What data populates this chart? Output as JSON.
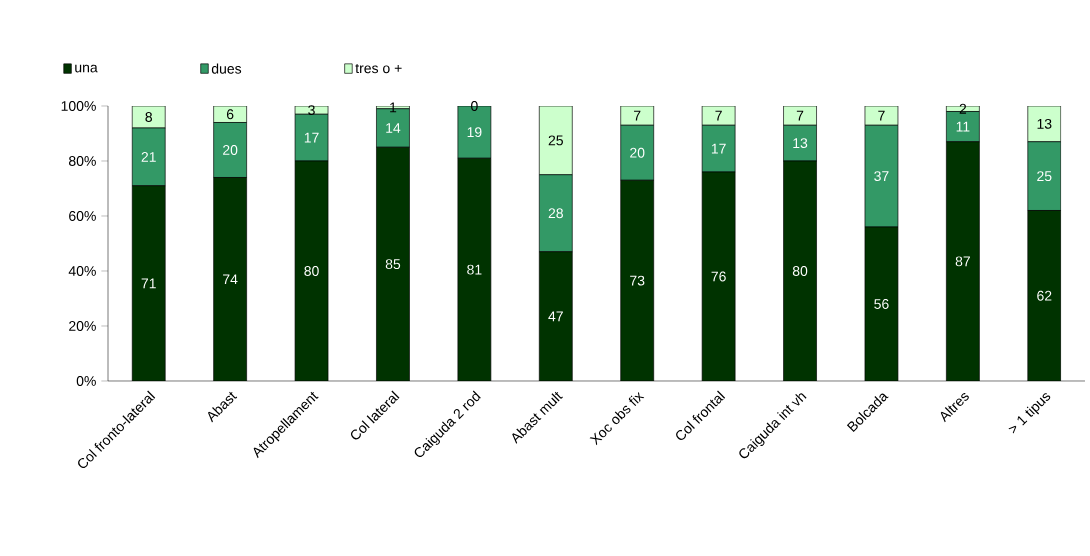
{
  "chart_data": {
    "type": "bar",
    "stacked": true,
    "data_labels": true,
    "legend": "top",
    "grid": false,
    "categories": [
      "Col fronto-lateral",
      "Abast",
      "Atropellament",
      "Col lateral",
      "Caiguda 2 rod",
      "Abast mult",
      "Xoc obs fix",
      "Col frontal",
      "Caiguda int vh",
      "Bolcada",
      "Altres",
      "> 1 tipus"
    ],
    "ylim": [
      0,
      100
    ],
    "yticks": [
      {
        "value": 0,
        "label": "0%"
      },
      {
        "value": 20,
        "label": "20%"
      },
      {
        "value": 40,
        "label": "40%"
      },
      {
        "value": 60,
        "label": "60%"
      },
      {
        "value": 80,
        "label": "80%"
      },
      {
        "value": 100,
        "label": "100%"
      }
    ],
    "series": [
      {
        "name": "una",
        "color": "#003300",
        "values": [
          71,
          74,
          80,
          85,
          81,
          47,
          73,
          76,
          80,
          56,
          87,
          62
        ]
      },
      {
        "name": "dues",
        "color": "#339966",
        "values": [
          21,
          20,
          17,
          14,
          19,
          28,
          20,
          17,
          13,
          37,
          11,
          25
        ]
      },
      {
        "name": "tres o +",
        "color": "#ccffcc",
        "values": [
          8,
          6,
          3,
          1,
          0,
          25,
          7,
          7,
          7,
          7,
          2,
          13
        ]
      }
    ]
  }
}
